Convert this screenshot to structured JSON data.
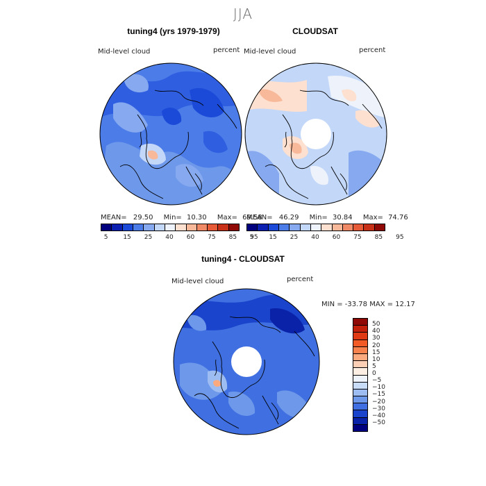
{
  "season": "JJA",
  "panels": [
    {
      "title": "tuning4 (yrs 1979-1979)",
      "variable": "Mid-level cloud",
      "units": "percent",
      "stats": {
        "mean_label": "MEAN=",
        "mean": "29.50",
        "min_label": "Min=",
        "min": "10.30",
        "max_label": "Max=",
        "max": "69.58"
      }
    },
    {
      "title": "CLOUDSAT",
      "variable": "Mid-level cloud",
      "units": "percent",
      "stats": {
        "mean_label": "MEAN=",
        "mean": "46.29",
        "min_label": "Min=",
        "min": "30.84",
        "max_label": "Max=",
        "max": "74.76"
      }
    },
    {
      "title": "tuning4 - CLOUDSAT",
      "variable": "Mid-level cloud",
      "units": "percent",
      "stats_text": "MIN = -33.78 MAX =  12.17"
    }
  ],
  "colorbar_abs": {
    "labels": [
      "5",
      "15",
      "25",
      "40",
      "60",
      "75",
      "85",
      "95"
    ],
    "colors": [
      "#00007f",
      "#0b1fb0",
      "#1c4ad8",
      "#4c7ce8",
      "#86a9f0",
      "#c3d7f8",
      "#eef3fb",
      "#fde0cf",
      "#f8b89a",
      "#f08a66",
      "#e65a38",
      "#c93018",
      "#8f0a06"
    ]
  },
  "colorbar_diff": {
    "labels": [
      "50",
      "40",
      "30",
      "20",
      "15",
      "10",
      "5",
      "0",
      "−5",
      "−10",
      "−15",
      "−20",
      "−30",
      "−40",
      "−50"
    ],
    "colors": [
      "#8f0a06",
      "#c3200c",
      "#e03a14",
      "#f25a26",
      "#f7824d",
      "#fbaa80",
      "#fdd0b5",
      "#fdeee3",
      "#eef3fb",
      "#c8dcf8",
      "#9dbdf2",
      "#6e98ea",
      "#3f6fe0",
      "#1a44cc",
      "#0a22a8",
      "#00007f"
    ]
  }
}
